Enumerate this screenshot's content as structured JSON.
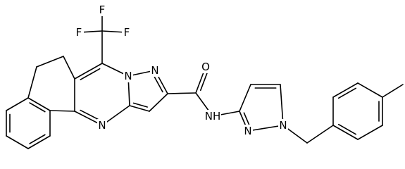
{
  "atoms": [
    {
      "label": "F"
    },
    {
      "label": "F"
    },
    {
      "label": "F"
    },
    {
      "label": "N"
    },
    {
      "label": "N"
    },
    {
      "label": "N"
    },
    {
      "label": "O"
    },
    {
      "label": "NH"
    },
    {
      "label": "N"
    },
    {
      "label": "N"
    }
  ]
}
